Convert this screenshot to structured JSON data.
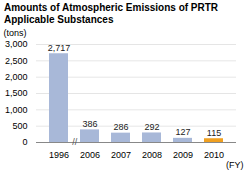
{
  "chart_data": {
    "type": "bar",
    "title": "Amounts of Atmospheric Emissions of PRTR Applicable Substances",
    "ylabel": "(tons)",
    "xlabel": "(FY)",
    "annotations": [
      "//"
    ],
    "categories": [
      "1996",
      "2006",
      "2007",
      "2008",
      "2009",
      "2010"
    ],
    "values": [
      2717,
      386,
      286,
      292,
      127,
      115
    ],
    "value_labels": [
      "2,717",
      "386",
      "286",
      "292",
      "127",
      "115"
    ],
    "data_labels": true,
    "colors": [
      "#a8b8d8",
      "#a8b8d8",
      "#a8b8d8",
      "#a8b8d8",
      "#a8b8d8",
      "#f0a020"
    ],
    "ylim": [
      0,
      3000
    ],
    "yticks": [
      0,
      500,
      {
        "value": 1000,
        "label": "1,000"
      },
      {
        "value": 1500,
        "label": "1,500"
      },
      {
        "value": 2000,
        "label": "2,000"
      },
      {
        "value": 2500,
        "label": "2,500"
      },
      {
        "value": 3000,
        "label": "3,000"
      }
    ],
    "grid": true
  }
}
